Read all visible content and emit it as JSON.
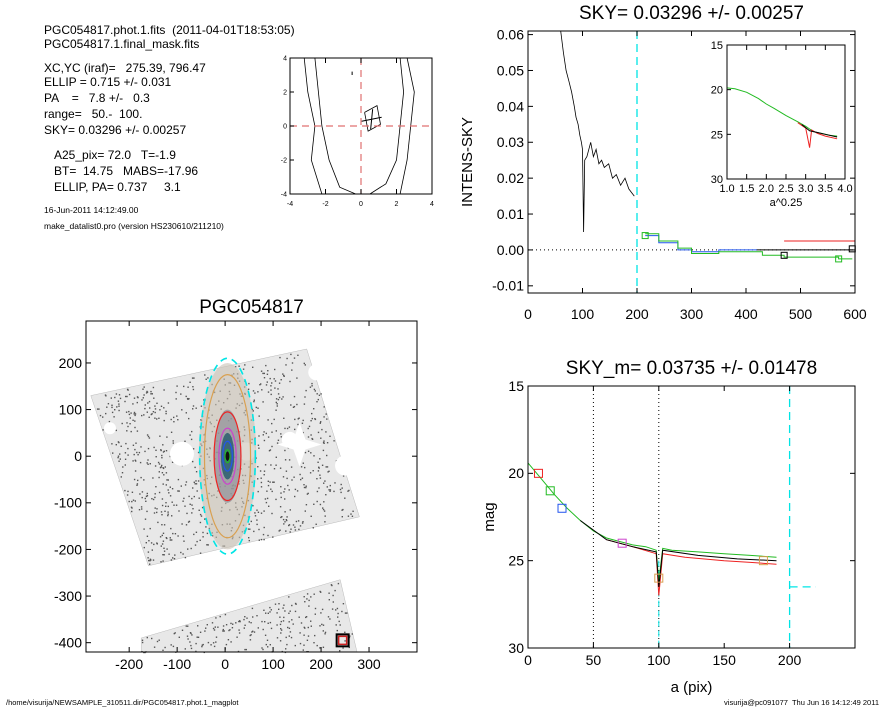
{
  "header": {
    "line1": "PGC054817.phot.1.fits  (2011-04-01T18:53:05)",
    "line2": "PGC054817.1.final_mask.fits",
    "xcyc": "XC,YC (iraf)=   275.39, 796.47",
    "ellip": "ELLIP = 0.715 +/- 0.031",
    "pa": "PA    =   7.8 +/-   0.3",
    "range": "range=   50.-  100.",
    "sky": "SKY= 0.03296 +/- 0.00257",
    "a25": "A25_pix= 72.0   T=-1.9",
    "bt": "BT=  14.75   MABS=-17.96",
    "ellippa": "ELLIP, PA= 0.737     3.1",
    "date": "16-Jun-2011 14:12:49.00",
    "program": "make_datalist0.pro (version HS230610/211210)"
  },
  "footer": {
    "left": "/home/visurija/NEWSAMPLE_310511.dir/PGC054817.phot.1_magplot",
    "right": "visurija@pc091077  Thu Jun 16 14:12:49 2011"
  },
  "colors": {
    "cyan": "#00e5e5",
    "red": "#ee2222",
    "green": "#22bb22",
    "blue": "#2255ee",
    "magenta": "#cc44cc",
    "orange": "#d9a050"
  },
  "chart_data": [
    {
      "id": "contour",
      "type": "line",
      "title": "",
      "xticks": [
        "-4",
        "-2",
        "0",
        "2",
        "4"
      ],
      "yticks": [
        "4",
        "2",
        "0",
        "-2",
        "-4"
      ],
      "xlim": [
        -4,
        4
      ],
      "ylim": [
        -4,
        4
      ],
      "crosshair": [
        0,
        0
      ],
      "marker": [
        0.6,
        0.4
      ],
      "contours": [
        [
          [
            -3.2,
            4
          ],
          [
            -3.0,
            2
          ],
          [
            -2.6,
            0
          ],
          [
            -2.8,
            -2
          ],
          [
            -2.2,
            -4
          ]
        ],
        [
          [
            -2.6,
            4
          ],
          [
            -2.4,
            2
          ],
          [
            -2.2,
            0
          ],
          [
            -1.8,
            -2
          ],
          [
            -1.2,
            -3.6
          ],
          [
            -0.3,
            -4
          ]
        ],
        [
          [
            2.2,
            4
          ],
          [
            2.4,
            2
          ],
          [
            2.2,
            0
          ],
          [
            2.0,
            -2
          ],
          [
            1.4,
            -3.4
          ],
          [
            0.5,
            -4
          ]
        ],
        [
          [
            2.6,
            4
          ],
          [
            3.0,
            2
          ],
          [
            2.8,
            0
          ],
          [
            2.6,
            -2
          ],
          [
            2.2,
            -4
          ]
        ],
        [
          [
            0.2,
            0.8
          ],
          [
            0.9,
            1.2
          ],
          [
            1.1,
            0.1
          ],
          [
            0.4,
            -0.3
          ],
          [
            0.2,
            0.8
          ]
        ]
      ]
    },
    {
      "id": "sky",
      "type": "line",
      "title": "SKY= 0.03296 +/- 0.00257",
      "ylabel": "INTENS-SKY",
      "xlim": [
        0,
        600
      ],
      "ylim": [
        -0.012,
        0.061
      ],
      "xticks": [
        "0",
        "100",
        "200",
        "300",
        "400",
        "500",
        "600"
      ],
      "yticks": [
        "0.06",
        "0.05",
        "0.04",
        "0.03",
        "0.02",
        "0.01",
        "0.00",
        "-0.01"
      ],
      "sky_range_x": 200,
      "profile": [
        [
          60,
          0.061
        ],
        [
          65,
          0.055
        ],
        [
          70,
          0.05
        ],
        [
          75,
          0.047
        ],
        [
          80,
          0.044
        ],
        [
          85,
          0.04
        ],
        [
          88,
          0.037
        ],
        [
          92,
          0.035
        ],
        [
          95,
          0.032
        ],
        [
          98,
          0.03
        ],
        [
          100,
          0.028
        ],
        [
          102,
          0.005
        ],
        [
          104,
          0.025
        ],
        [
          108,
          0.026
        ],
        [
          115,
          0.03
        ],
        [
          120,
          0.026
        ],
        [
          125,
          0.028
        ],
        [
          130,
          0.024
        ],
        [
          135,
          0.025
        ],
        [
          140,
          0.023
        ],
        [
          148,
          0.024
        ],
        [
          155,
          0.02
        ],
        [
          162,
          0.021
        ],
        [
          170,
          0.018
        ],
        [
          178,
          0.02
        ],
        [
          185,
          0.017
        ],
        [
          190,
          0.016
        ],
        [
          195,
          0.015
        ]
      ],
      "series": [
        {
          "name": "blue",
          "color": "blue",
          "points": [
            [
              215,
              0.004
            ],
            [
              240,
              0.004
            ],
            [
              240,
              0.002
            ],
            [
              275,
              0.002
            ],
            [
              275,
              0.0
            ],
            [
              300,
              0.0
            ],
            [
              300,
              -0.0005
            ],
            [
              350,
              -0.0005
            ],
            [
              350,
              0.0
            ],
            [
              420,
              0.0
            ]
          ]
        },
        {
          "name": "green",
          "color": "green",
          "points": [
            [
              215,
              0.0045
            ],
            [
              240,
              0.0045
            ],
            [
              240,
              0.0025
            ],
            [
              275,
              0.0025
            ],
            [
              275,
              0.0005
            ],
            [
              300,
              0.0005
            ],
            [
              300,
              -0.001
            ],
            [
              350,
              -0.001
            ],
            [
              350,
              -0.0005
            ],
            [
              430,
              -0.0005
            ],
            [
              430,
              -0.0015
            ],
            [
              470,
              -0.0015
            ],
            [
              470,
              -0.002
            ],
            [
              570,
              -0.002
            ],
            [
              570,
              -0.0025
            ],
            [
              595,
              -0.0025
            ]
          ]
        },
        {
          "name": "red",
          "color": "red",
          "points": [
            [
              470,
              0.0025
            ],
            [
              600,
              0.0025
            ]
          ]
        },
        {
          "name": "black",
          "color": "black",
          "points": [
            [
              420,
              0.0
            ],
            [
              595,
              0.0
            ]
          ]
        }
      ],
      "squares": [
        [
          215,
          0.004,
          "green"
        ],
        [
          470,
          -0.0015,
          "black"
        ],
        [
          570,
          -0.0025,
          "green"
        ],
        [
          595,
          0.0003,
          "black"
        ]
      ]
    },
    {
      "id": "inset",
      "type": "line",
      "xlabel": "a^0.25",
      "xlim": [
        1.0,
        4.0
      ],
      "ylim": [
        30,
        15
      ],
      "xticks": [
        "1.0",
        "1.5",
        "2.0",
        "2.5",
        "3.0",
        "3.5",
        "4.0"
      ],
      "yticks": [
        "15",
        "20",
        "25",
        "30"
      ],
      "series": [
        {
          "name": "green",
          "color": "green",
          "points": [
            [
              1.0,
              19.8
            ],
            [
              1.2,
              19.9
            ],
            [
              1.5,
              20.3
            ],
            [
              1.8,
              21.0
            ],
            [
              2.0,
              21.6
            ],
            [
              2.2,
              22.1
            ],
            [
              2.5,
              22.9
            ],
            [
              2.8,
              23.6
            ],
            [
              3.0,
              24.1
            ],
            [
              3.2,
              24.7
            ],
            [
              3.4,
              24.9
            ],
            [
              3.6,
              25.1
            ],
            [
              3.8,
              25.2
            ]
          ]
        },
        {
          "name": "red",
          "color": "red",
          "points": [
            [
              2.8,
              23.7
            ],
            [
              3.0,
              24.3
            ],
            [
              3.1,
              26.5
            ],
            [
              3.15,
              24.5
            ],
            [
              3.3,
              24.9
            ],
            [
              3.5,
              25.2
            ],
            [
              3.8,
              25.5
            ]
          ]
        },
        {
          "name": "black",
          "color": "black",
          "points": [
            [
              2.9,
              23.9
            ],
            [
              3.1,
              24.6
            ],
            [
              3.3,
              24.8
            ],
            [
              3.5,
              25.0
            ],
            [
              3.8,
              25.3
            ]
          ]
        }
      ]
    },
    {
      "id": "image",
      "type": "scatter",
      "title": "PGC054817",
      "xlim": [
        -290,
        400
      ],
      "ylim": [
        -420,
        290
      ],
      "xticks": [
        "-200",
        "-100",
        "0",
        "100",
        "200",
        "300"
      ],
      "yticks": [
        "200",
        "100",
        "0",
        "-100",
        "-200",
        "-300",
        "-400"
      ],
      "ellipses": [
        {
          "cx": 5,
          "cy": 0,
          "rx": 58,
          "ry": 210,
          "color": "cyan",
          "dash": true
        },
        {
          "cx": 5,
          "cy": 0,
          "rx": 48,
          "ry": 175,
          "color": "orange",
          "dash": false
        },
        {
          "cx": 5,
          "cy": 0,
          "rx": 28,
          "ry": 95,
          "color": "red",
          "dash": false
        },
        {
          "cx": 5,
          "cy": 0,
          "rx": 18,
          "ry": 60,
          "color": "magenta",
          "dash": false
        },
        {
          "cx": 5,
          "cy": 0,
          "rx": 10,
          "ry": 32,
          "color": "blue",
          "dash": false
        },
        {
          "cx": 5,
          "cy": 0,
          "rx": 5,
          "ry": 14,
          "color": "green",
          "dash": false
        }
      ],
      "marker": [
        245,
        -395
      ]
    },
    {
      "id": "mag",
      "type": "line",
      "title": "SKY_m=  0.03735 +/- 0.01478",
      "xlabel": "a (pix)",
      "ylabel": "mag",
      "xlim": [
        0,
        250
      ],
      "ylim": [
        30,
        15
      ],
      "xticks": [
        "0",
        "50",
        "100",
        "150",
        "200"
      ],
      "yticks": [
        "15",
        "20",
        "25",
        "30"
      ],
      "vlines": [
        50,
        100
      ],
      "sky_x": 200,
      "series": [
        {
          "name": "green",
          "color": "green",
          "points": [
            [
              0,
              19.4
            ],
            [
              10,
              20.3
            ],
            [
              20,
              21.2
            ],
            [
              30,
              22.0
            ],
            [
              40,
              22.7
            ],
            [
              50,
              23.3
            ],
            [
              60,
              23.7
            ],
            [
              70,
              23.9
            ],
            [
              80,
              24.1
            ],
            [
              90,
              24.2
            ],
            [
              98,
              24.4
            ],
            [
              100,
              26.2
            ],
            [
              103,
              24.3
            ],
            [
              110,
              24.4
            ],
            [
              130,
              24.5
            ],
            [
              150,
              24.6
            ],
            [
              170,
              24.7
            ],
            [
              190,
              24.8
            ]
          ]
        },
        {
          "name": "red",
          "color": "red",
          "points": [
            [
              60,
              23.8
            ],
            [
              80,
              24.2
            ],
            [
              98,
              24.6
            ],
            [
              100,
              27.0
            ],
            [
              103,
              24.6
            ],
            [
              120,
              24.8
            ],
            [
              150,
              25.0
            ],
            [
              170,
              25.1
            ],
            [
              190,
              25.2
            ]
          ]
        },
        {
          "name": "black",
          "color": "black",
          "points": [
            [
              40,
              22.7
            ],
            [
              60,
              23.8
            ],
            [
              80,
              24.2
            ],
            [
              98,
              24.5
            ],
            [
              100,
              26.5
            ],
            [
              103,
              24.4
            ],
            [
              130,
              24.7
            ],
            [
              160,
              24.9
            ],
            [
              190,
              25.0
            ]
          ]
        }
      ],
      "squares": [
        [
          8,
          20.0,
          "red"
        ],
        [
          17,
          21.0,
          "green"
        ],
        [
          26,
          22.0,
          "blue"
        ],
        [
          72,
          24.0,
          "magenta"
        ],
        [
          100,
          26.0,
          "orange"
        ],
        [
          180,
          25.0,
          "orange"
        ]
      ],
      "sky_level": 26.5
    }
  ]
}
